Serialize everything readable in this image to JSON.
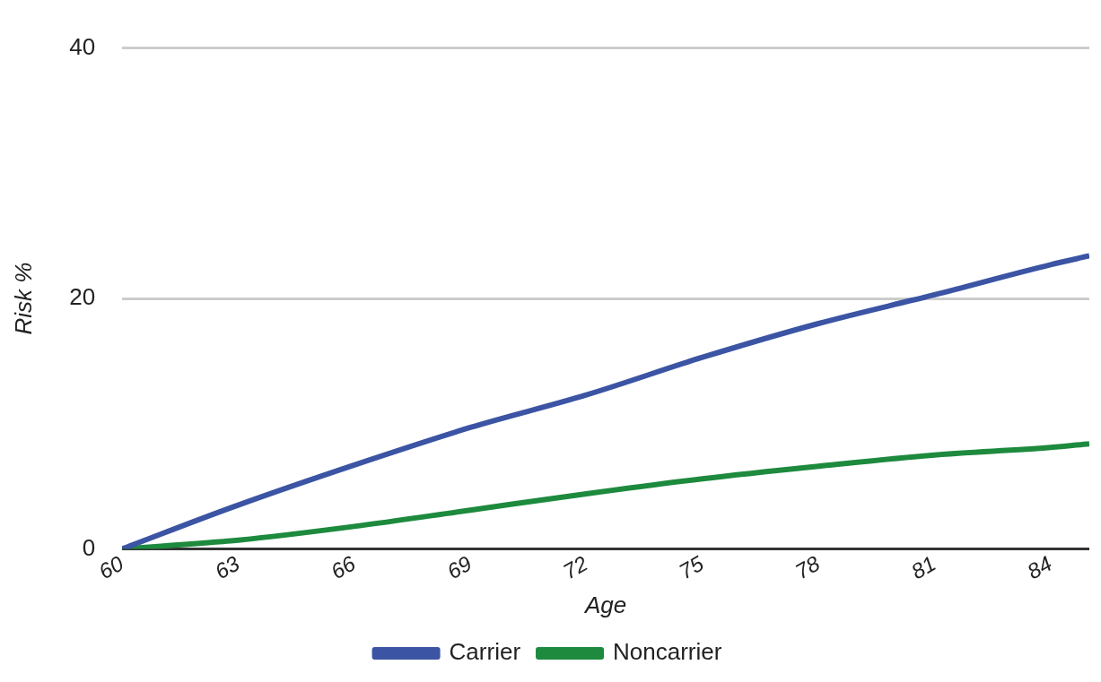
{
  "chart_data": {
    "type": "line",
    "xlabel": "Age",
    "ylabel": "Risk %",
    "x": [
      60,
      63,
      66,
      69,
      72,
      75,
      78,
      81,
      84,
      85
    ],
    "series": [
      {
        "name": "Carrier",
        "color": "#3b54a4",
        "values": [
          0,
          3.5,
          6.7,
          9.7,
          12.3,
          15.3,
          18.0,
          20.3,
          22.7,
          23.4
        ]
      },
      {
        "name": "Noncarrier",
        "color": "#1d8a3e",
        "values": [
          0,
          0.7,
          1.8,
          3.1,
          4.4,
          5.6,
          6.6,
          7.5,
          8.1,
          8.4
        ]
      }
    ],
    "xlim": [
      60,
      85
    ],
    "xticks": [
      60,
      63,
      66,
      69,
      72,
      75,
      78,
      81,
      84
    ],
    "ylim": [
      0,
      40
    ],
    "yticks": [
      0,
      20,
      40
    ],
    "grid": "y",
    "legend": "bottom",
    "marker": "none",
    "line_style": "solid"
  }
}
